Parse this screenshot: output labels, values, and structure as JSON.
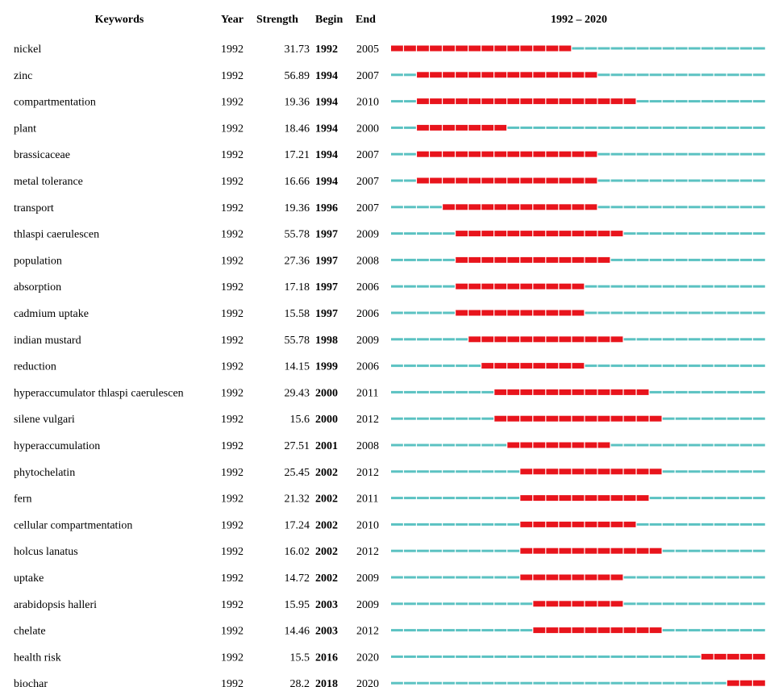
{
  "chart_data": {
    "type": "table",
    "headers": {
      "keyword": "Keywords",
      "year": "Year",
      "strength": "Strength",
      "begin": "Begin",
      "end": "End",
      "range": "1992 – 2020"
    },
    "timeline": {
      "start": 1992,
      "end": 2020
    },
    "colors": {
      "burst": "#e8141c",
      "baseline": "#5bc2c2",
      "text": "#222222"
    },
    "rows": [
      {
        "keyword": "nickel",
        "year": "1992",
        "strength": "31.73",
        "begin": "1992",
        "end": "2005"
      },
      {
        "keyword": "zinc",
        "year": "1992",
        "strength": "56.89",
        "begin": "1994",
        "end": "2007"
      },
      {
        "keyword": "compartmentation",
        "year": "1992",
        "strength": "19.36",
        "begin": "1994",
        "end": "2010"
      },
      {
        "keyword": "plant",
        "year": "1992",
        "strength": "18.46",
        "begin": "1994",
        "end": "2000"
      },
      {
        "keyword": "brassicaceae",
        "year": "1992",
        "strength": "17.21",
        "begin": "1994",
        "end": "2007"
      },
      {
        "keyword": "metal tolerance",
        "year": "1992",
        "strength": "16.66",
        "begin": "1994",
        "end": "2007"
      },
      {
        "keyword": "transport",
        "year": "1992",
        "strength": "19.36",
        "begin": "1996",
        "end": "2007"
      },
      {
        "keyword": "thlaspi caerulescen",
        "year": "1992",
        "strength": "55.78",
        "begin": "1997",
        "end": "2009"
      },
      {
        "keyword": "population",
        "year": "1992",
        "strength": "27.36",
        "begin": "1997",
        "end": "2008"
      },
      {
        "keyword": "absorption",
        "year": "1992",
        "strength": "17.18",
        "begin": "1997",
        "end": "2006"
      },
      {
        "keyword": "cadmium uptake",
        "year": "1992",
        "strength": "15.58",
        "begin": "1997",
        "end": "2006"
      },
      {
        "keyword": "indian mustard",
        "year": "1992",
        "strength": "55.78",
        "begin": "1998",
        "end": "2009"
      },
      {
        "keyword": "reduction",
        "year": "1992",
        "strength": "14.15",
        "begin": "1999",
        "end": "2006"
      },
      {
        "keyword": "hyperaccumulator thlaspi caerulescen",
        "year": "1992",
        "strength": "29.43",
        "begin": "2000",
        "end": "2011"
      },
      {
        "keyword": "silene vulgari",
        "year": "1992",
        "strength": "15.6",
        "begin": "2000",
        "end": "2012"
      },
      {
        "keyword": "hyperaccumulation",
        "year": "1992",
        "strength": "27.51",
        "begin": "2001",
        "end": "2008"
      },
      {
        "keyword": "phytochelatin",
        "year": "1992",
        "strength": "25.45",
        "begin": "2002",
        "end": "2012"
      },
      {
        "keyword": "fern",
        "year": "1992",
        "strength": "21.32",
        "begin": "2002",
        "end": "2011"
      },
      {
        "keyword": "cellular compartmentation",
        "year": "1992",
        "strength": "17.24",
        "begin": "2002",
        "end": "2010"
      },
      {
        "keyword": "holcus lanatus",
        "year": "1992",
        "strength": "16.02",
        "begin": "2002",
        "end": "2012"
      },
      {
        "keyword": "uptake",
        "year": "1992",
        "strength": "14.72",
        "begin": "2002",
        "end": "2009"
      },
      {
        "keyword": "arabidopsis halleri",
        "year": "1992",
        "strength": "15.95",
        "begin": "2003",
        "end": "2009"
      },
      {
        "keyword": "chelate",
        "year": "1992",
        "strength": "14.46",
        "begin": "2003",
        "end": "2012"
      },
      {
        "keyword": "health risk",
        "year": "1992",
        "strength": "15.5",
        "begin": "2016",
        "end": "2020"
      },
      {
        "keyword": "biochar",
        "year": "1992",
        "strength": "28.2",
        "begin": "2018",
        "end": "2020"
      }
    ]
  }
}
